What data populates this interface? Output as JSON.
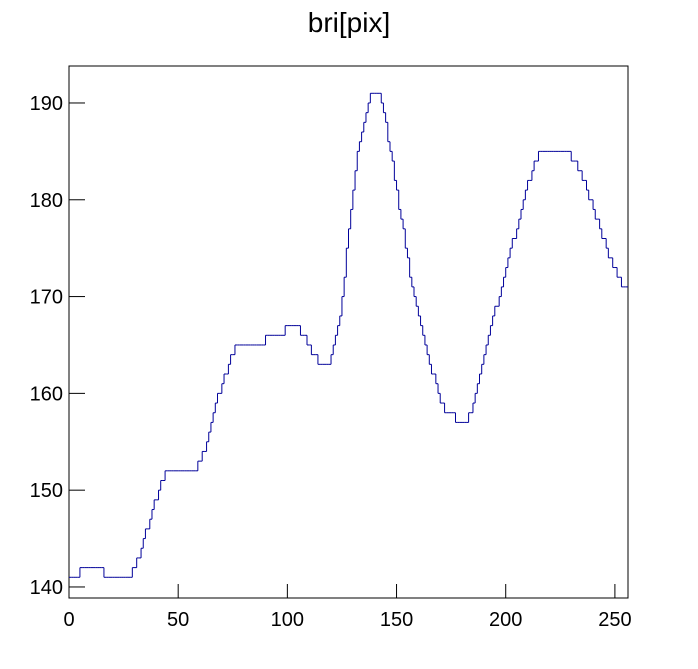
{
  "chart_data": {
    "type": "histogram",
    "title": "bri[pix]",
    "bins": [
      0,
      1,
      2,
      3,
      4,
      5,
      6,
      7,
      8,
      9,
      10,
      11,
      12,
      13,
      14,
      15,
      16,
      17,
      18,
      19,
      20,
      21,
      22,
      23,
      24,
      25,
      26,
      27,
      28,
      29,
      30,
      31,
      32,
      33,
      34,
      35,
      36,
      37,
      38,
      39,
      40,
      41,
      42,
      43,
      44,
      45,
      46,
      47,
      48,
      49,
      50,
      51,
      52,
      53,
      54,
      55,
      56,
      57,
      58,
      59,
      60,
      61,
      62,
      63,
      64,
      65,
      66,
      67,
      68,
      69,
      70,
      71,
      72,
      73,
      74,
      75,
      76,
      77,
      78,
      79,
      80,
      81,
      82,
      83,
      84,
      85,
      86,
      87,
      88,
      89,
      90,
      91,
      92,
      93,
      94,
      95,
      96,
      97,
      98,
      99,
      100,
      101,
      102,
      103,
      104,
      105,
      106,
      107,
      108,
      109,
      110,
      111,
      112,
      113,
      114,
      115,
      116,
      117,
      118,
      119,
      120,
      121,
      122,
      123,
      124,
      125,
      126,
      127,
      128,
      129,
      130,
      131,
      132,
      133,
      134,
      135,
      136,
      137,
      138,
      139,
      140,
      141,
      142,
      143,
      144,
      145,
      146,
      147,
      148,
      149,
      150,
      151,
      152,
      153,
      154,
      155,
      156,
      157,
      158,
      159,
      160,
      161,
      162,
      163,
      164,
      165,
      166,
      167,
      168,
      169,
      170,
      171,
      172,
      173,
      174,
      175,
      176,
      177,
      178,
      179,
      180,
      181,
      182,
      183,
      184,
      185,
      186,
      187,
      188,
      189,
      190,
      191,
      192,
      193,
      194,
      195,
      196,
      197,
      198,
      199,
      200,
      201,
      202,
      203,
      204,
      205,
      206,
      207,
      208,
      209,
      210,
      211,
      212,
      213,
      214,
      215,
      216,
      217,
      218,
      219,
      220,
      221,
      222,
      223,
      224,
      225,
      226,
      227,
      228,
      229,
      230,
      231,
      232,
      233,
      234,
      235,
      236,
      237,
      238,
      239,
      240,
      241,
      242,
      243,
      244,
      245,
      246,
      247,
      248,
      249,
      250,
      251,
      252,
      253,
      254,
      255,
      256
    ],
    "values": [
      141,
      141,
      141,
      141,
      141,
      142,
      142,
      142,
      142,
      142,
      142,
      142,
      142,
      142,
      142,
      142,
      141,
      141,
      141,
      141,
      141,
      141,
      141,
      141,
      141,
      141,
      141,
      141,
      141,
      142,
      142,
      143,
      143,
      144,
      145,
      146,
      146,
      147,
      148,
      149,
      149,
      150,
      151,
      151,
      152,
      152,
      152,
      152,
      152,
      152,
      152,
      152,
      152,
      152,
      152,
      152,
      152,
      152,
      152,
      153,
      153,
      154,
      154,
      155,
      156,
      157,
      158,
      159,
      160,
      160,
      161,
      162,
      162,
      163,
      164,
      164,
      165,
      165,
      165,
      165,
      165,
      165,
      165,
      165,
      165,
      165,
      165,
      165,
      165,
      165,
      166,
      166,
      166,
      166,
      166,
      166,
      166,
      166,
      166,
      167,
      167,
      167,
      167,
      167,
      167,
      167,
      166,
      166,
      166,
      165,
      165,
      164,
      164,
      164,
      163,
      163,
      163,
      163,
      163,
      163,
      164,
      165,
      166,
      167,
      168,
      170,
      172,
      175,
      177,
      179,
      181,
      183,
      185,
      186,
      187,
      188,
      189,
      190,
      191,
      191,
      191,
      191,
      191,
      190,
      189,
      188,
      186,
      185,
      184,
      182,
      181,
      179,
      178,
      177,
      175,
      174,
      172,
      171,
      170,
      169,
      168,
      167,
      166,
      165,
      164,
      163,
      162,
      162,
      161,
      160,
      159,
      159,
      158,
      158,
      158,
      158,
      158,
      157,
      157,
      157,
      157,
      157,
      157,
      158,
      158,
      159,
      160,
      161,
      162,
      163,
      164,
      165,
      166,
      167,
      168,
      169,
      169,
      170,
      171,
      172,
      173,
      174,
      175,
      176,
      176,
      177,
      178,
      179,
      180,
      181,
      182,
      182,
      183,
      184,
      184,
      185,
      185,
      185,
      185,
      185,
      185,
      185,
      185,
      185,
      185,
      185,
      185,
      185,
      185,
      185,
      184,
      184,
      184,
      183,
      183,
      182,
      182,
      181,
      180,
      180,
      179,
      178,
      178,
      177,
      176,
      176,
      175,
      174,
      174,
      173,
      173,
      172,
      172,
      171,
      171,
      171
    ],
    "color": "#000099",
    "xlim": [
      0,
      256
    ],
    "xticks": [
      0,
      50,
      100,
      150,
      200,
      250
    ],
    "ylim": [
      138.86,
      193.82
    ],
    "yticks": [
      140,
      150,
      160,
      170,
      180,
      190
    ]
  }
}
